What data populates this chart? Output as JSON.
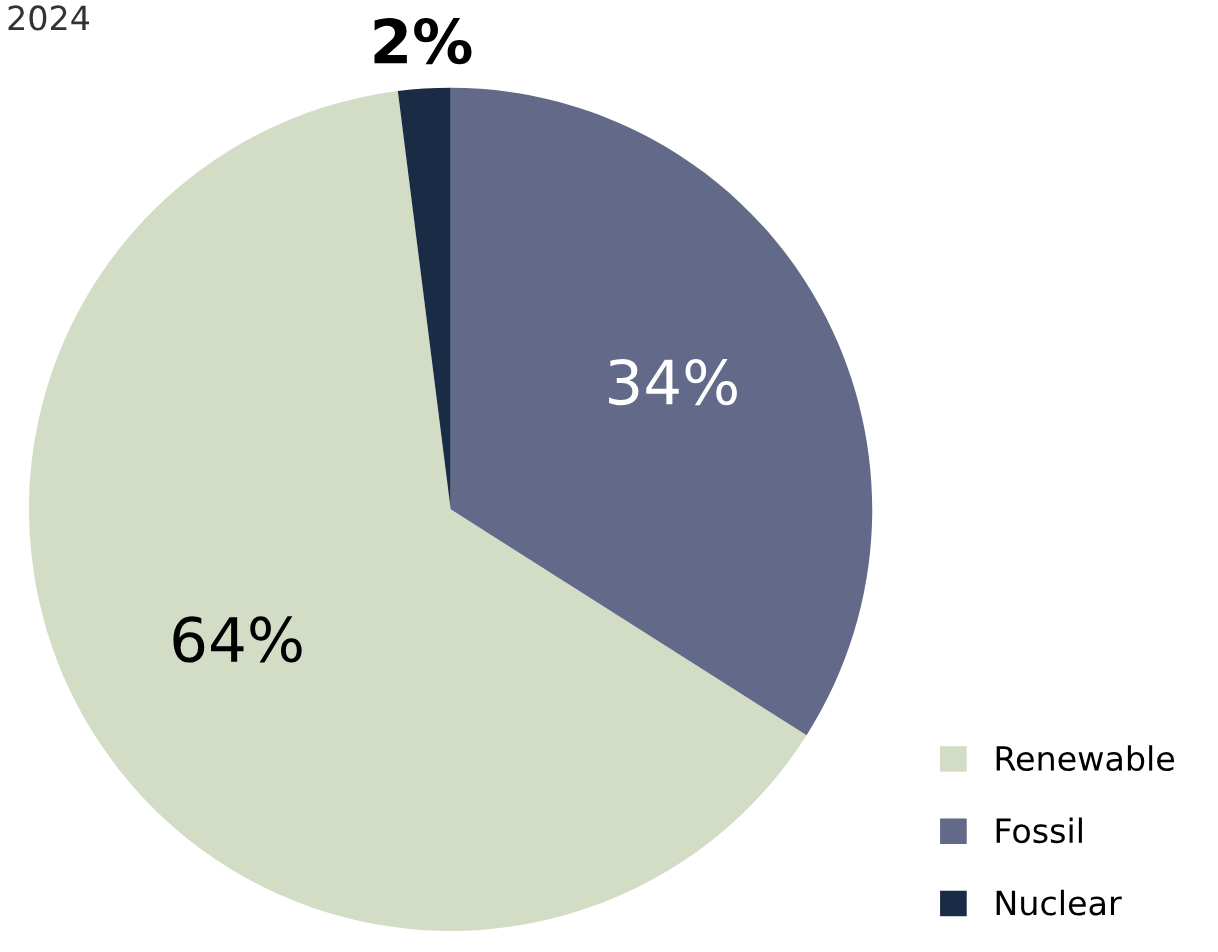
{
  "chart_data": {
    "type": "pie",
    "title": "2024",
    "categories": [
      "Renewable",
      "Fossil",
      "Nuclear"
    ],
    "values": [
      64,
      34,
      2
    ],
    "colors": [
      "#d3dcc4",
      "#636a89",
      "#1a2b45"
    ],
    "value_labels": [
      "64%",
      "34%",
      "2%"
    ],
    "legend": "bottom right"
  }
}
